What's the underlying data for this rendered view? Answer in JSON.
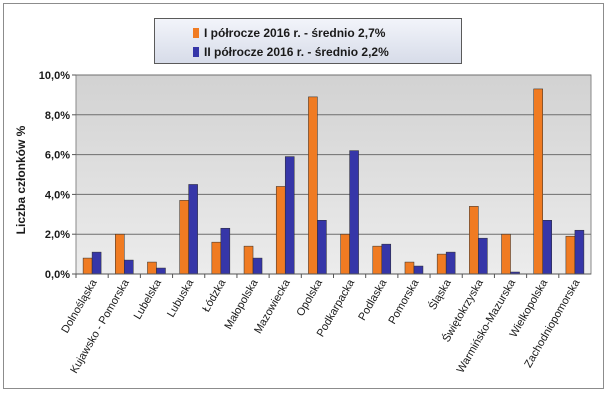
{
  "chart_data": {
    "type": "bar",
    "ylabel": "Liczba członków %",
    "ylim": [
      0,
      10
    ],
    "yticks": [
      "0,0%",
      "2,0%",
      "4,0%",
      "6,0%",
      "8,0%",
      "10,0%"
    ],
    "grid": true,
    "legend_position": "top",
    "categories": [
      "Dolnośląska",
      "Kujawsko - Pomorska",
      "Lubelska",
      "Lubuska",
      "Łódzka",
      "Małopolska",
      "Mazowiecka",
      "Opolska",
      "Podkarpacka",
      "Podlaska",
      "Pomorska",
      "Śląska",
      "Świętokrzyska",
      "Warmińsko-Mazurska",
      "Wielkopolska",
      "Zachodniopomorska"
    ],
    "series": [
      {
        "name": "I półrocze 2016 r. - średnio 2,7%",
        "color": "#f07b22",
        "values": [
          0.8,
          2.0,
          0.6,
          3.7,
          1.6,
          1.4,
          4.4,
          8.9,
          2.0,
          1.4,
          0.6,
          1.0,
          3.4,
          2.0,
          9.3,
          1.9
        ]
      },
      {
        "name": "II półrocze 2016 r. - średnio 2,2%",
        "color": "#3636a8",
        "values": [
          1.1,
          0.7,
          0.3,
          4.5,
          2.3,
          0.8,
          5.9,
          2.7,
          6.2,
          1.5,
          0.4,
          1.1,
          1.8,
          0.1,
          2.7,
          2.2
        ]
      }
    ]
  }
}
